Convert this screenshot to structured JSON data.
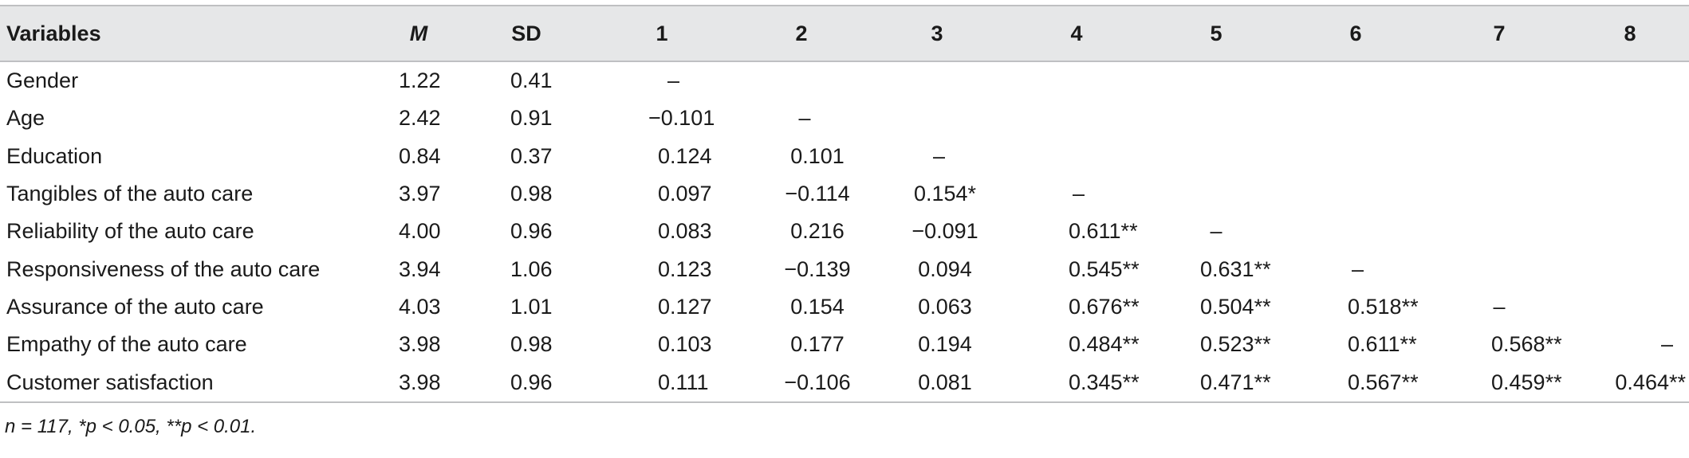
{
  "table": {
    "headers": [
      "Variables",
      "M",
      "SD",
      "1",
      "2",
      "3",
      "4",
      "5",
      "6",
      "7",
      "8"
    ],
    "rows": [
      {
        "label": "Gender",
        "m": "1.22",
        "sd": "0.41",
        "cells": [
          "–",
          "",
          "",
          "",
          "",
          "",
          "",
          ""
        ]
      },
      {
        "label": "Age",
        "m": "2.42",
        "sd": "0.91",
        "cells": [
          "−0.101",
          "–",
          "",
          "",
          "",
          "",
          "",
          ""
        ]
      },
      {
        "label": "Education",
        "m": "0.84",
        "sd": "0.37",
        "cells": [
          "0.124",
          "0.101",
          "–",
          "",
          "",
          "",
          "",
          ""
        ]
      },
      {
        "label": "Tangibles of the auto care",
        "m": "3.97",
        "sd": "0.98",
        "cells": [
          "0.097",
          "−0.114",
          "0.154*",
          "–",
          "",
          "",
          "",
          ""
        ]
      },
      {
        "label": "Reliability of the auto care",
        "m": "4.00",
        "sd": "0.96",
        "cells": [
          "0.083",
          "0.216",
          "−0.091",
          "0.611**",
          "–",
          "",
          "",
          ""
        ]
      },
      {
        "label": "Responsiveness of the auto care",
        "m": "3.94",
        "sd": "1.06",
        "cells": [
          "0.123",
          "−0.139",
          "0.094",
          "0.545**",
          "0.631**",
          "–",
          "",
          ""
        ]
      },
      {
        "label": "Assurance of the auto care",
        "m": "4.03",
        "sd": "1.01",
        "cells": [
          "0.127",
          "0.154",
          "0.063",
          "0.676**",
          "0.504**",
          "0.518**",
          "–",
          ""
        ]
      },
      {
        "label": "Empathy of the auto care",
        "m": "3.98",
        "sd": "0.98",
        "cells": [
          "0.103",
          "0.177",
          "0.194",
          "0.484**",
          "0.523**",
          "0.611**",
          "0.568**",
          "–"
        ]
      },
      {
        "label": "Customer satisfaction",
        "m": "3.98",
        "sd": "0.96",
        "cells": [
          "0.111",
          "−0.106",
          "0.081",
          "0.345**",
          "0.471**",
          "0.567**",
          "0.459**",
          "0.464**"
        ]
      }
    ]
  },
  "footnote": "n = 117, *p < 0.05, **p < 0.01."
}
